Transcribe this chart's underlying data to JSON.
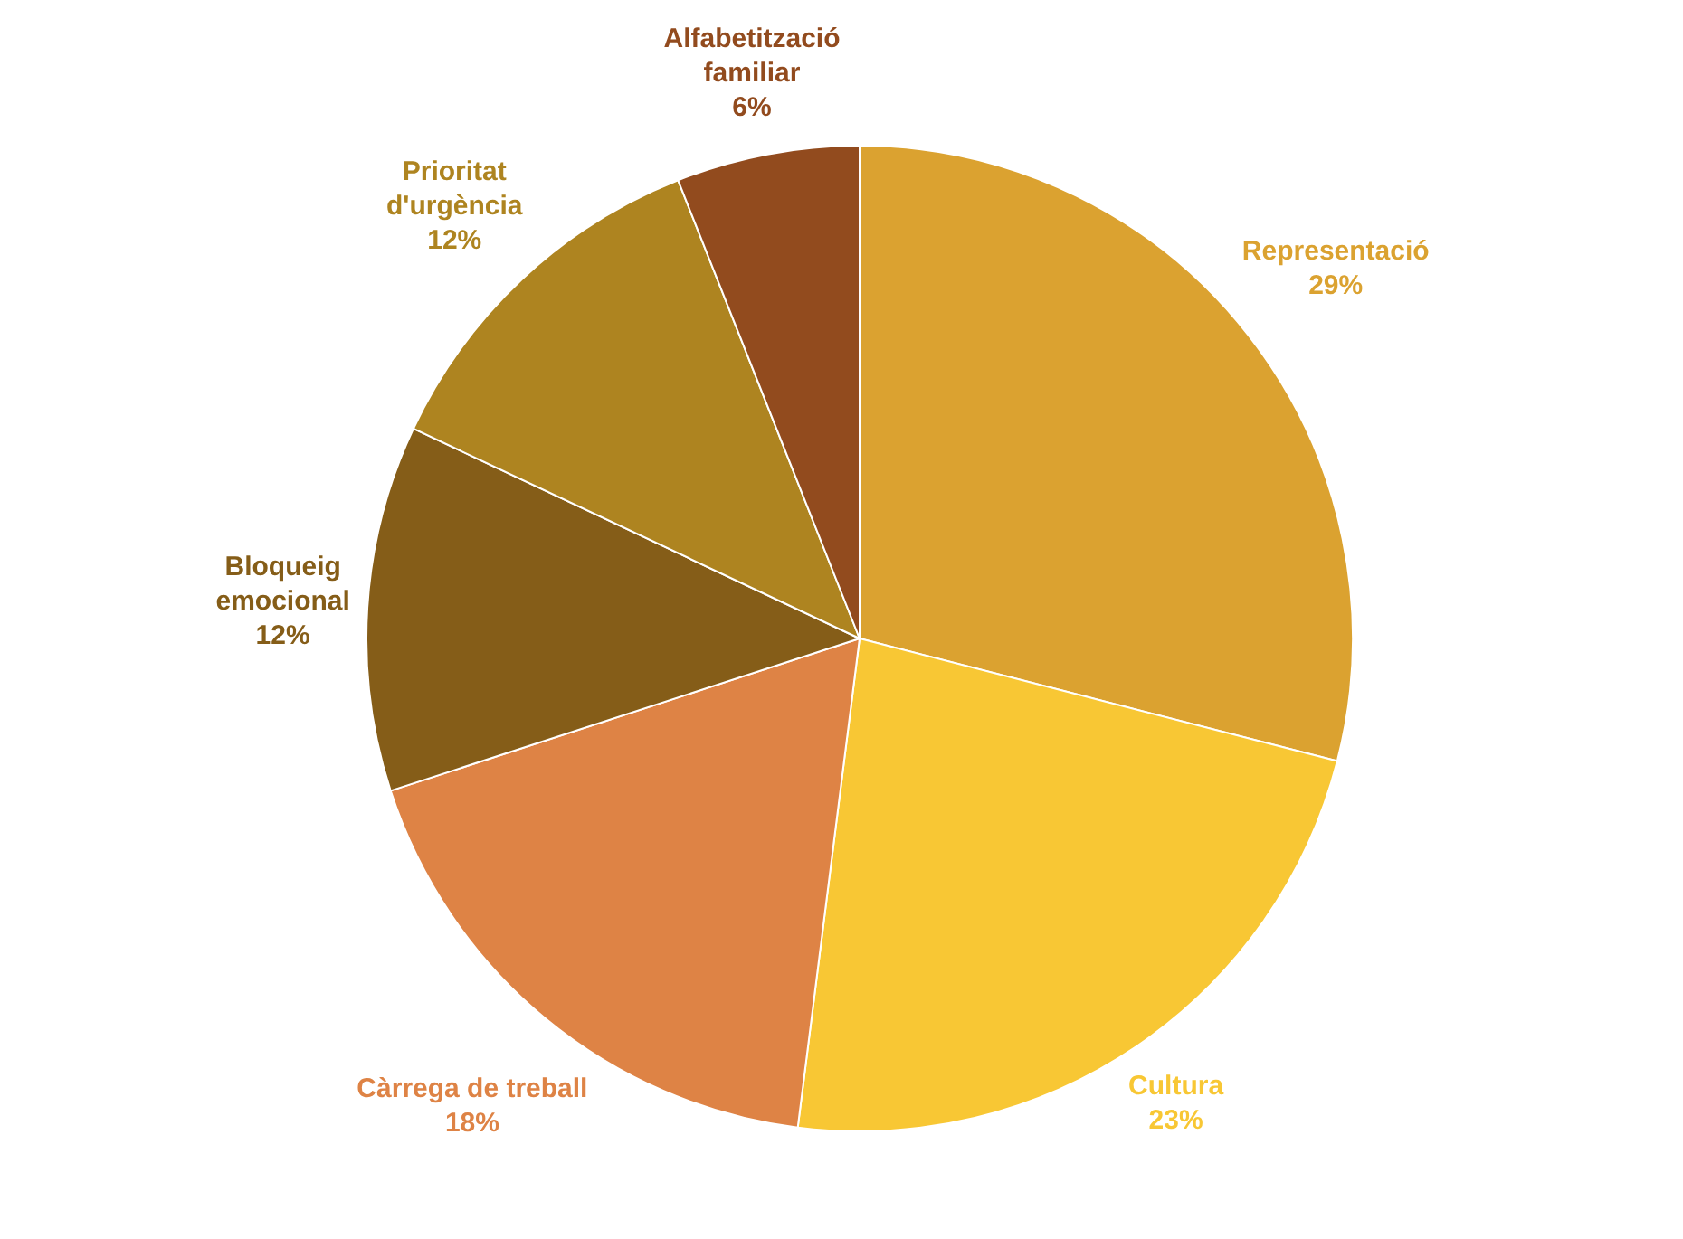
{
  "chart_data": {
    "type": "pie",
    "categories": [
      "Representació",
      "Cultura",
      "Càrrega de treball",
      "Bloqueig emocional",
      "Prioritat d'urgència",
      "Alfabetització familiar"
    ],
    "values": [
      29,
      23,
      18,
      12,
      12,
      6
    ],
    "value_labels": [
      "29%",
      "23%",
      "18%",
      "12%",
      "12%",
      "6%"
    ],
    "colors": [
      "#dba230",
      "#f8c734",
      "#de8345",
      "#855d18",
      "#ae8420",
      "#924b1e"
    ],
    "legend": false
  }
}
